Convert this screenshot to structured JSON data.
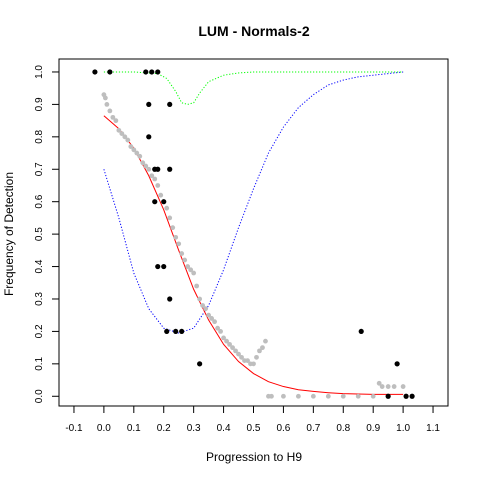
{
  "chart_data": {
    "type": "scatter",
    "title": "LUM - Normals-2",
    "xlabel": "Progression to H9",
    "ylabel": "Frequency of Detection",
    "xlim": [
      -0.15,
      1.15
    ],
    "ylim": [
      -0.03,
      1.04
    ],
    "x_ticks": [
      -0.1,
      0,
      0.1,
      0.2,
      0.3,
      0.4,
      0.5,
      0.6,
      0.7,
      0.8,
      0.9,
      1,
      1.1
    ],
    "x_tick_labels": [
      "-0.1",
      "0.0",
      "0.1",
      "0.2",
      "0.3",
      "0.4",
      "0.5",
      "0.6",
      "0.7",
      "0.8",
      "0.9",
      "1.0",
      "1.1"
    ],
    "y_ticks": [
      0,
      0.1,
      0.2,
      0.3,
      0.4,
      0.5,
      0.6,
      0.7,
      0.8,
      0.9,
      1
    ],
    "y_tick_labels": [
      "0.0",
      "0.1",
      "0.2",
      "0.3",
      "0.4",
      "0.5",
      "0.6",
      "0.7",
      "0.8",
      "0.9",
      "1.0"
    ],
    "grid": false,
    "legend": "none",
    "series": [
      {
        "kind": "observed-points",
        "color": "#000000",
        "x": [
          -0.03,
          0.02,
          0.14,
          0.16,
          0.18,
          0.15,
          0.22,
          0.15,
          0.17,
          0.18,
          0.22,
          0.17,
          0.2,
          0.18,
          0.2,
          0.22,
          0.21,
          0.24,
          0.26,
          0.32,
          0.86,
          0.98,
          0.95,
          1.01,
          1.03
        ],
        "y": [
          1,
          1,
          1,
          1,
          1,
          0.9,
          0.9,
          0.8,
          0.7,
          0.7,
          0.7,
          0.6,
          0.6,
          0.4,
          0.4,
          0.3,
          0.2,
          0.2,
          0.2,
          0.1,
          0.2,
          0.1,
          0,
          0,
          0
        ]
      },
      {
        "kind": "smoothed-points",
        "color": "#bebebe",
        "x": [
          0,
          0.005,
          0.01,
          0.02,
          0.03,
          0.04,
          0.05,
          0.06,
          0.07,
          0.08,
          0.09,
          0.1,
          0.11,
          0.12,
          0.13,
          0.14,
          0.15,
          0.16,
          0.17,
          0.18,
          0.19,
          0.2,
          0.21,
          0.22,
          0.23,
          0.24,
          0.25,
          0.26,
          0.27,
          0.28,
          0.29,
          0.3,
          0.31,
          0.32,
          0.33,
          0.34,
          0.35,
          0.36,
          0.37,
          0.38,
          0.39,
          0.4,
          0.41,
          0.42,
          0.43,
          0.44,
          0.45,
          0.46,
          0.47,
          0.48,
          0.49,
          0.5,
          0.51,
          0.52,
          0.53,
          0.54,
          0.55,
          0.56,
          0.6,
          0.65,
          0.7,
          0.75,
          0.8,
          0.85,
          0.9,
          0.92,
          0.93,
          0.95,
          0.97,
          1.0
        ],
        "y": [
          0.93,
          0.92,
          0.9,
          0.88,
          0.86,
          0.85,
          0.82,
          0.81,
          0.8,
          0.79,
          0.77,
          0.76,
          0.75,
          0.74,
          0.72,
          0.71,
          0.7,
          0.68,
          0.67,
          0.65,
          0.62,
          0.6,
          0.58,
          0.55,
          0.52,
          0.49,
          0.47,
          0.44,
          0.42,
          0.4,
          0.39,
          0.38,
          0.34,
          0.3,
          0.28,
          0.27,
          0.25,
          0.24,
          0.23,
          0.21,
          0.2,
          0.18,
          0.17,
          0.16,
          0.15,
          0.14,
          0.13,
          0.12,
          0.11,
          0.11,
          0.1,
          0.1,
          0.12,
          0.14,
          0.15,
          0.17,
          0,
          0,
          0,
          0,
          0,
          0,
          0,
          0,
          0,
          0.04,
          0.03,
          0.03,
          0.03,
          0.03
        ]
      },
      {
        "kind": "fitted-curve",
        "color": "#ff0000",
        "x": [
          0,
          0.05,
          0.1,
          0.15,
          0.2,
          0.25,
          0.3,
          0.35,
          0.4,
          0.45,
          0.5,
          0.55,
          0.6,
          0.65,
          0.7,
          0.75,
          0.8,
          0.85,
          0.9,
          0.95,
          1.0
        ],
        "y": [
          0.865,
          0.825,
          0.765,
          0.68,
          0.575,
          0.45,
          0.33,
          0.235,
          0.16,
          0.107,
          0.07,
          0.045,
          0.03,
          0.02,
          0.015,
          0.011,
          0.008,
          0.007,
          0.006,
          0.006,
          0.006
        ]
      },
      {
        "kind": "band-lower",
        "color": "#0000ff",
        "style": "dotted",
        "x": [
          0,
          0.05,
          0.1,
          0.15,
          0.2,
          0.25,
          0.3,
          0.35,
          0.4,
          0.45,
          0.5,
          0.55,
          0.6,
          0.65,
          0.7,
          0.75,
          0.8,
          0.85,
          0.9,
          0.95,
          1.0
        ],
        "y": [
          0.7,
          0.55,
          0.38,
          0.27,
          0.21,
          0.195,
          0.21,
          0.28,
          0.39,
          0.52,
          0.64,
          0.75,
          0.83,
          0.89,
          0.93,
          0.96,
          0.975,
          0.985,
          0.99,
          0.995,
          1.0
        ]
      },
      {
        "kind": "band-upper",
        "color": "#00ff00",
        "style": "dotted",
        "x": [
          0,
          0.1,
          0.18,
          0.21,
          0.24,
          0.26,
          0.28,
          0.3,
          0.32,
          0.35,
          0.4,
          0.45,
          0.5,
          0.6,
          0.7,
          0.8,
          0.9,
          1.0
        ],
        "y": [
          1,
          1,
          0.995,
          0.98,
          0.94,
          0.905,
          0.9,
          0.905,
          0.935,
          0.97,
          0.99,
          0.997,
          1,
          1,
          1,
          1,
          1,
          1
        ]
      }
    ]
  }
}
